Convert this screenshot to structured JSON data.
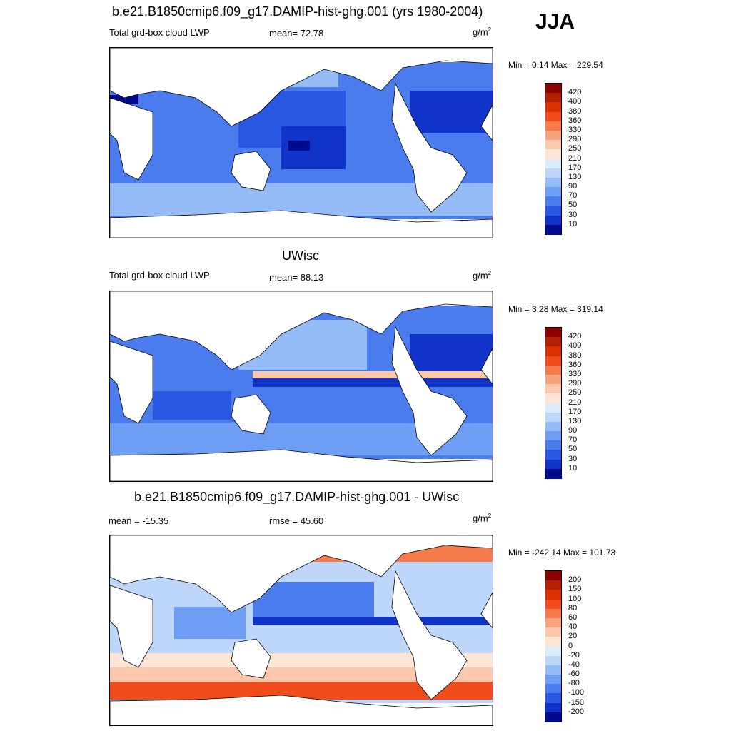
{
  "season": "JJA",
  "unit_main": "g/m",
  "unit_sup": "2",
  "panels": [
    {
      "title": "b.e21.B1850cmip6.f09_g17.DAMIP-hist-ghg.001 (yrs 1980-2004)",
      "left_label": "Total grd-box cloud LWP",
      "center_label": "mean=  72.78",
      "min_max": "Min =   0.14 Max = 229.54"
    },
    {
      "title": "UWisc",
      "left_label": "Total grd-box cloud LWP",
      "center_label": "mean=  88.13",
      "min_max": "Min =   3.28 Max = 319.14"
    },
    {
      "title": "b.e21.B1850cmip6.f09_g17.DAMIP-hist-ghg.001 - UWisc",
      "left_label": "mean = -15.35",
      "center_label": "rmse =  45.60",
      "min_max": "Min = -242.14 Max = 101.73"
    }
  ],
  "colorbar_abs": {
    "labels": [
      "420",
      "400",
      "380",
      "360",
      "330",
      "290",
      "250",
      "210",
      "170",
      "130",
      "90",
      "70",
      "50",
      "30",
      "10"
    ],
    "colors": [
      "#8b0000",
      "#b22000",
      "#d83000",
      "#f04c1c",
      "#f67a4a",
      "#f9a27e",
      "#fcc8ac",
      "#fde6d6",
      "#dcecfb",
      "#bdd6fa",
      "#96bcf8",
      "#6e9ef4",
      "#4a7ced",
      "#2a58e2",
      "#1034c8",
      "#000a8c"
    ]
  },
  "colorbar_diff": {
    "labels": [
      "200",
      "150",
      "100",
      "80",
      "60",
      "40",
      "20",
      "0",
      "-20",
      "-40",
      "-60",
      "-80",
      "-100",
      "-150",
      "-200"
    ],
    "colors": [
      "#8b0000",
      "#b22000",
      "#d83000",
      "#f04c1c",
      "#f67a4a",
      "#f9a27e",
      "#fcc8ac",
      "#fde6d6",
      "#dcecfb",
      "#bdd6fa",
      "#96bcf8",
      "#6e9ef4",
      "#4a7ced",
      "#2a58e2",
      "#1034c8",
      "#000a8c"
    ]
  },
  "chart_data": [
    {
      "type": "heatmap",
      "title": "b.e21.B1850cmip6.f09_g17.DAMIP-hist-ghg.001 (yrs 1980-2004)",
      "variable": "Total grd-box cloud LWP",
      "units": "g/m2",
      "mean": 72.78,
      "min": 0.14,
      "max": 229.54,
      "levels": [
        10,
        30,
        50,
        70,
        90,
        130,
        170,
        210,
        250,
        290,
        330,
        360,
        380,
        400,
        420
      ]
    },
    {
      "type": "heatmap",
      "title": "UWisc",
      "variable": "Total grd-box cloud LWP",
      "units": "g/m2",
      "mean": 88.13,
      "min": 3.28,
      "max": 319.14,
      "levels": [
        10,
        30,
        50,
        70,
        90,
        130,
        170,
        210,
        250,
        290,
        330,
        360,
        380,
        400,
        420
      ]
    },
    {
      "type": "heatmap",
      "title": "b.e21.B1850cmip6.f09_g17.DAMIP-hist-ghg.001 - UWisc",
      "units": "g/m2",
      "mean": -15.35,
      "rmse": 45.6,
      "min": -242.14,
      "max": 101.73,
      "levels": [
        -200,
        -150,
        -100,
        -80,
        -60,
        -40,
        -20,
        0,
        20,
        40,
        60,
        80,
        100,
        150,
        200
      ]
    }
  ]
}
